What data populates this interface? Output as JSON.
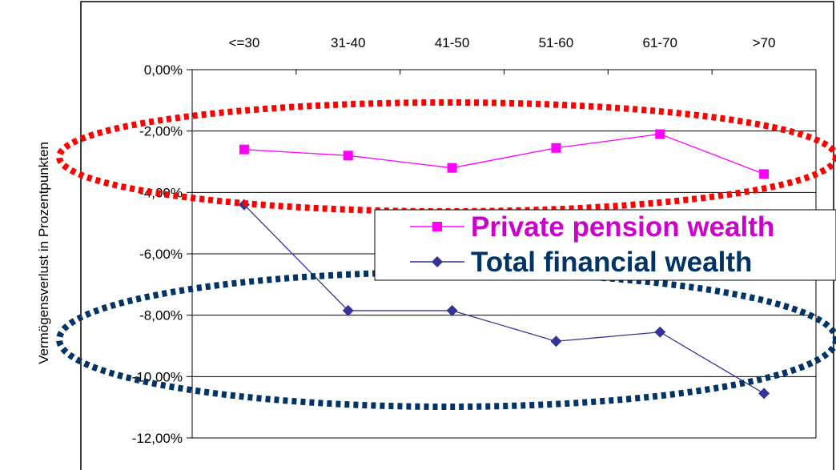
{
  "chart_data": {
    "type": "line",
    "ylabel": "Vermögensverlust in Prozentpunkten",
    "categories": [
      "<=30",
      "31-40",
      "41-50",
      "51-60",
      "61-70",
      ">70"
    ],
    "ylim": [
      -12,
      0
    ],
    "yticks": [
      0,
      -2,
      -4,
      -6,
      -8,
      -10,
      -12
    ],
    "ytick_labels": [
      "0,00%",
      "-2,00%",
      "-4,00%",
      "-6,00%",
      "-8,00%",
      "-10,00%",
      "-12,00%"
    ],
    "grid": true,
    "series": [
      {
        "name": "Private pension wealth",
        "values": [
          -2.6,
          -2.8,
          -3.2,
          -2.55,
          -2.1,
          -3.4
        ],
        "color": "#ff00ff",
        "marker": "square"
      },
      {
        "name": "Total financial wealth",
        "values": [
          -4.4,
          -7.85,
          -7.85,
          -8.85,
          -8.55,
          -10.55
        ],
        "color": "#333399",
        "marker": "diamond"
      }
    ],
    "legend": {
      "placement": "center-right"
    },
    "annotations": [
      {
        "shape": "dotted-ellipse",
        "color": "#ff0000",
        "encloses": "Private pension wealth"
      },
      {
        "shape": "dotted-ellipse",
        "color": "#003366",
        "encloses": "Total financial wealth"
      }
    ],
    "legend_text_colors": [
      "#cc00cc",
      "#003366"
    ]
  }
}
